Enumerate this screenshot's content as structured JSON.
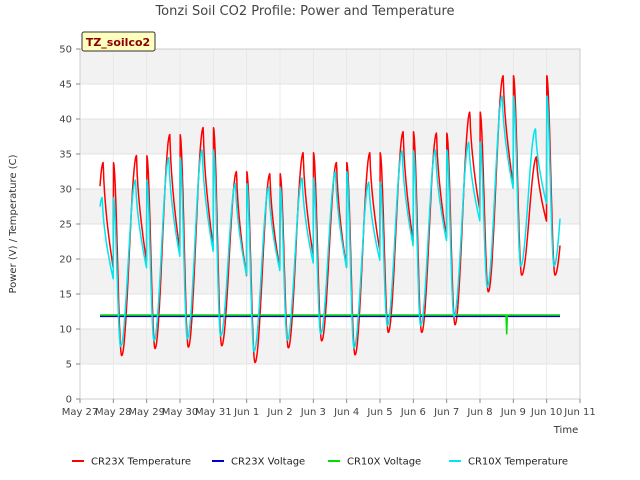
{
  "chart_data": {
    "type": "line",
    "title": "Tonzi Soil CO2 Profile: Power and Temperature",
    "xlabel": "Time",
    "ylabel": "Power (V) / Temperature (C)",
    "site_label": "TZ_soilco2",
    "ylim": [
      0,
      50
    ],
    "yticks": [
      0,
      5,
      10,
      15,
      20,
      25,
      30,
      35,
      40,
      45,
      50
    ],
    "xlim": [
      0,
      15
    ],
    "xtick_labels": [
      "May 27",
      "May 28",
      "May 29",
      "May 30",
      "May 31",
      "Jun 1",
      "Jun 2",
      "Jun 3",
      "Jun 4",
      "Jun 5",
      "Jun 6",
      "Jun 7",
      "Jun 8",
      "Jun 9",
      "Jun 10",
      "Jun 11"
    ],
    "grid": true,
    "legend_position": "bottom",
    "daily": {
      "days": [
        0,
        1,
        2,
        3,
        4,
        5,
        6,
        7,
        8,
        9,
        10,
        11,
        12,
        13
      ],
      "cr23x_min": [
        4.7,
        6.2,
        7.2,
        7.4,
        7.6,
        5.2,
        7.3,
        8.3,
        6.3,
        9.5,
        9.5,
        10.6,
        15.3,
        17.7
      ],
      "cr23x_max": [
        33.8,
        34.8,
        37.8,
        38.8,
        32.5,
        32.2,
        35.2,
        33.8,
        35.2,
        38.2,
        38.0,
        41.0,
        46.2,
        34.6
      ],
      "cr10x_min": [
        6.0,
        7.5,
        8.3,
        8.6,
        9.0,
        6.8,
        8.4,
        9.3,
        7.3,
        10.5,
        10.5,
        11.8,
        16.0,
        19.0
      ],
      "cr10x_max": [
        28.8,
        31.3,
        34.5,
        35.6,
        30.8,
        30.3,
        31.6,
        32.5,
        31.0,
        35.5,
        35.6,
        36.7,
        43.3,
        38.6
      ]
    },
    "series": [
      {
        "name": "CR23X Temperature",
        "color": "#ff0000",
        "range": [
          0.6,
          14.4
        ]
      },
      {
        "name": "CR23X Voltage",
        "color": "#0000cc",
        "value": 11.8,
        "range": [
          0.6,
          14.4
        ]
      },
      {
        "name": "CR10X Voltage",
        "color": "#00dd00",
        "value": 12.0,
        "range": [
          0.6,
          14.4
        ],
        "dip": {
          "x": 12.8,
          "y": 9.3
        }
      },
      {
        "name": "CR10X Temperature",
        "color": "#00e5ee",
        "range": [
          0.6,
          14.4
        ]
      }
    ]
  }
}
